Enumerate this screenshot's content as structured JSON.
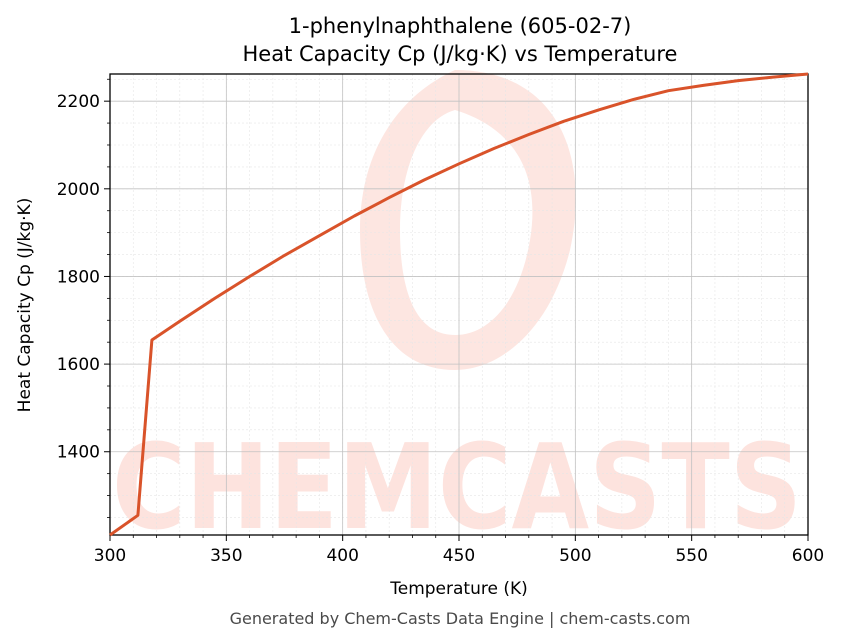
{
  "chart_data": {
    "type": "line",
    "title": "1-phenylnaphthalene (605-02-7)",
    "subtitle": "Heat Capacity Cp (J/kg·K) vs Temperature",
    "xlabel": "Temperature (K)",
    "ylabel": "Heat Capacity Cp (J/kg·K)",
    "xlim": [
      300,
      600
    ],
    "ylim": [
      1210,
      2262
    ],
    "x_ticks": [
      300,
      350,
      400,
      450,
      500,
      550,
      600
    ],
    "y_ticks": [
      1400,
      1600,
      1800,
      2000,
      2200
    ],
    "grid": true,
    "line_color": "#d9532a",
    "series": [
      {
        "x": [
          300,
          312,
          318,
          330,
          345,
          360,
          375,
          390,
          405,
          420,
          435,
          450,
          465,
          480,
          495,
          510,
          525,
          540,
          555,
          570,
          585,
          600
        ],
        "values": [
          1210,
          1255,
          1655,
          1698,
          1750,
          1800,
          1848,
          1893,
          1938,
          1980,
          2020,
          2057,
          2092,
          2124,
          2154,
          2180,
          2204,
          2224,
          2236,
          2247,
          2255,
          2262
        ]
      }
    ]
  },
  "watermark": {
    "text": "CHEMCASTS",
    "color": "#fde3de"
  },
  "footer": "Generated by Chem-Casts Data Engine | chem-casts.com"
}
